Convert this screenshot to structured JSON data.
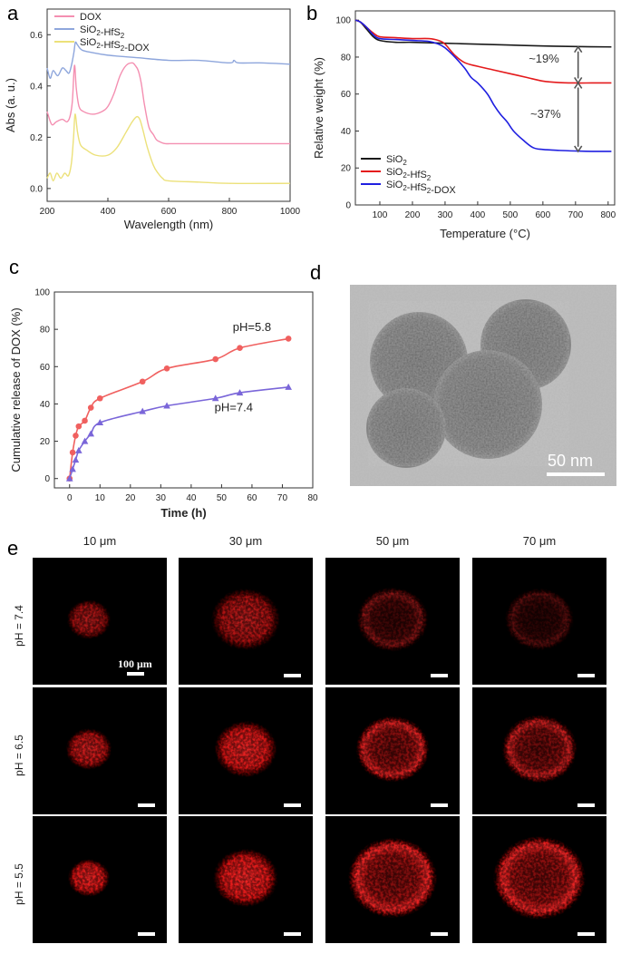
{
  "chart_data": [
    {
      "panel": "a",
      "type": "line",
      "xlabel": "Wavelength (nm)",
      "ylabel": "Abs (a. u.)",
      "xlim": [
        200,
        1000
      ],
      "ylim": [
        -0.05,
        0.7
      ],
      "xticks": [
        200,
        400,
        600,
        800,
        1000
      ],
      "yticks": [
        0.0,
        0.2,
        0.4,
        0.6
      ],
      "legend": "top-left",
      "series": [
        {
          "name": "DOX",
          "color": "#f48fb1",
          "x": [
            200,
            215,
            230,
            250,
            265,
            275,
            283,
            290,
            296,
            305,
            320,
            350,
            380,
            400,
            420,
            440,
            460,
            480,
            490,
            500,
            510,
            520,
            535,
            550,
            560,
            575,
            590,
            620,
            700,
            800,
            1000
          ],
          "y": [
            0.3,
            0.25,
            0.26,
            0.27,
            0.26,
            0.28,
            0.34,
            0.48,
            0.39,
            0.32,
            0.3,
            0.29,
            0.3,
            0.32,
            0.37,
            0.44,
            0.48,
            0.49,
            0.48,
            0.46,
            0.41,
            0.33,
            0.24,
            0.21,
            0.19,
            0.18,
            0.175,
            0.175,
            0.175,
            0.175,
            0.175
          ]
        },
        {
          "name": "SiO2-HfS2",
          "color": "#8ea6dc",
          "x": [
            200,
            210,
            220,
            235,
            250,
            262,
            272,
            280,
            288,
            293,
            300,
            315,
            350,
            400,
            500,
            600,
            700,
            800,
            815,
            830,
            900,
            1000
          ],
          "y": [
            0.47,
            0.43,
            0.46,
            0.44,
            0.47,
            0.46,
            0.45,
            0.48,
            0.53,
            0.57,
            0.56,
            0.54,
            0.53,
            0.52,
            0.51,
            0.5,
            0.5,
            0.49,
            0.5,
            0.49,
            0.49,
            0.485
          ]
        },
        {
          "name": "SiO2-HfS2-DOX",
          "color": "#ece17a",
          "x": [
            200,
            210,
            220,
            232,
            245,
            258,
            270,
            280,
            287,
            292,
            300,
            310,
            330,
            360,
            400,
            430,
            460,
            480,
            495,
            505,
            515,
            530,
            550,
            565,
            580,
            600,
            700,
            800,
            1000
          ],
          "y": [
            0.04,
            0.06,
            0.03,
            0.06,
            0.04,
            0.06,
            0.05,
            0.1,
            0.2,
            0.29,
            0.22,
            0.17,
            0.15,
            0.13,
            0.13,
            0.16,
            0.22,
            0.26,
            0.28,
            0.27,
            0.23,
            0.16,
            0.09,
            0.06,
            0.04,
            0.03,
            0.025,
            0.02,
            0.02
          ]
        }
      ]
    },
    {
      "panel": "b",
      "type": "line",
      "xlabel": "Temperature (°C)",
      "ylabel": "Relative weight (%)",
      "xlim": [
        25,
        820
      ],
      "ylim": [
        0,
        105
      ],
      "xticks": [
        100,
        200,
        300,
        400,
        500,
        600,
        700,
        800
      ],
      "yticks": [
        0,
        20,
        40,
        60,
        80,
        100
      ],
      "legend": "bottom-left",
      "annotations": [
        "~19%",
        "~37%"
      ],
      "series": [
        {
          "name": "SiO2",
          "color": "#1a1a1a",
          "x": [
            25,
            40,
            60,
            80,
            100,
            150,
            200,
            300,
            400,
            500,
            600,
            700,
            810
          ],
          "y": [
            100,
            99,
            95,
            91,
            89,
            88,
            88,
            87.5,
            87,
            86.5,
            86,
            85.7,
            85.5
          ]
        },
        {
          "name": "SiO2-HfS2",
          "color": "#e41a1c",
          "x": [
            25,
            40,
            60,
            80,
            100,
            150,
            200,
            250,
            280,
            300,
            330,
            360,
            400,
            450,
            500,
            550,
            600,
            650,
            700,
            750,
            810
          ],
          "y": [
            100,
            99,
            96,
            93,
            91,
            90.5,
            90,
            90,
            89,
            87,
            81,
            77,
            75,
            73,
            71,
            69,
            67,
            66.2,
            66,
            66,
            66
          ]
        },
        {
          "name": "SiO2-HfS2-DOX",
          "color": "#1f1fe0",
          "x": [
            25,
            40,
            60,
            80,
            100,
            150,
            200,
            250,
            280,
            300,
            330,
            360,
            380,
            400,
            430,
            450,
            470,
            490,
            510,
            540,
            570,
            600,
            650,
            700,
            750,
            810
          ],
          "y": [
            100,
            99,
            96,
            92,
            90,
            89.5,
            89,
            88.5,
            87,
            85,
            80,
            74,
            69,
            66,
            60,
            54,
            49,
            45,
            40,
            35,
            31,
            30,
            29.5,
            29.2,
            29,
            29
          ]
        }
      ]
    },
    {
      "panel": "c",
      "type": "scatter",
      "xlabel": "Time (h)",
      "ylabel": "Cumulative release of DOX (%)",
      "xlim": [
        -5,
        80
      ],
      "ylim": [
        -5,
        100
      ],
      "xticks": [
        0,
        10,
        20,
        30,
        40,
        50,
        60,
        70,
        80
      ],
      "yticks": [
        0,
        20,
        40,
        60,
        80,
        100
      ],
      "series": [
        {
          "name": "pH=5.8",
          "color": "#f0605f",
          "marker": "circle",
          "x": [
            0,
            1,
            2,
            3,
            5,
            7,
            10,
            24,
            32,
            48,
            56,
            72
          ],
          "y": [
            0,
            14,
            23,
            28,
            31,
            38,
            43,
            52,
            59,
            64,
            70,
            75
          ]
        },
        {
          "name": "pH=7.4",
          "color": "#7a66d9",
          "marker": "triangle",
          "x": [
            0,
            1,
            2,
            3,
            5,
            7,
            10,
            24,
            32,
            48,
            56,
            72
          ],
          "y": [
            0,
            5,
            10,
            15,
            20,
            24,
            30,
            36,
            39,
            43,
            46,
            49
          ]
        }
      ]
    }
  ],
  "panel_labels": {
    "a": "a",
    "b": "b",
    "c": "c",
    "d": "d",
    "e": "e"
  },
  "panel_a": {
    "sub_si": "SiO",
    "sub_2": "2",
    "sub_hfs": "-HfS",
    "sub_dox": "-DOX"
  },
  "panel_d": {
    "scale_bar": "50 nm"
  },
  "panel_e": {
    "columns": [
      "10 μm",
      "30 μm",
      "50 μm",
      "70 μm"
    ],
    "rows": [
      "pH = 7.4",
      "pH = 6.5",
      "pH = 5.5"
    ],
    "scale_bar": "100 μm",
    "spot_intensity": [
      [
        0.6,
        0.65,
        0.45,
        0.3
      ],
      [
        0.75,
        0.9,
        0.9,
        0.8
      ],
      [
        0.9,
        0.95,
        1.0,
        1.0
      ]
    ],
    "spot_radius_rel": [
      [
        0.42,
        0.66,
        0.68,
        0.66
      ],
      [
        0.44,
        0.6,
        0.7,
        0.72
      ],
      [
        0.4,
        0.62,
        0.85,
        0.88
      ]
    ],
    "colors": {
      "signal": "#ff2020",
      "background": "#000000"
    }
  }
}
